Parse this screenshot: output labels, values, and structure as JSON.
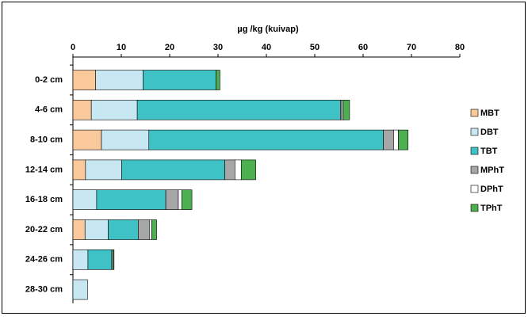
{
  "chart_data": {
    "type": "hbar-stacked",
    "title": "µg /kg (kuivap)",
    "categories": [
      "0-2 cm",
      "4-6 cm",
      "8-10 cm",
      "12-14 cm",
      "16-18 cm",
      "20-22 cm",
      "24-26 cm",
      "28-30 cm"
    ],
    "series": [
      {
        "name": "MBT",
        "color": "#f9c89b",
        "values": [
          4.7,
          3.8,
          5.9,
          2.6,
          0,
          2.5,
          0,
          0
        ]
      },
      {
        "name": "DBT",
        "color": "#c7e8f2",
        "values": [
          9.8,
          9.5,
          9.8,
          7.5,
          4.9,
          4.8,
          3.1,
          3.0
        ]
      },
      {
        "name": "TBT",
        "color": "#3fc2c5",
        "values": [
          15.1,
          42,
          48.5,
          21.3,
          14.3,
          6.2,
          4.9,
          0
        ]
      },
      {
        "name": "MPhT",
        "color": "#a6a6a6",
        "values": [
          0,
          0.3,
          2.1,
          2.1,
          2.6,
          2.3,
          0.3,
          0
        ]
      },
      {
        "name": "DPhT",
        "color": "#ffffff",
        "values": [
          0,
          0.3,
          1.0,
          1.3,
          0.7,
          0.5,
          0,
          0
        ]
      },
      {
        "name": "TPhT",
        "color": "#4caf50",
        "values": [
          0.8,
          1.3,
          2.0,
          3.0,
          2.1,
          1.0,
          0.2,
          0
        ]
      }
    ],
    "xlim": [
      0,
      80
    ],
    "xticks": [
      0,
      10,
      20,
      30,
      40,
      50,
      60,
      70,
      80
    ],
    "legend": "right"
  }
}
